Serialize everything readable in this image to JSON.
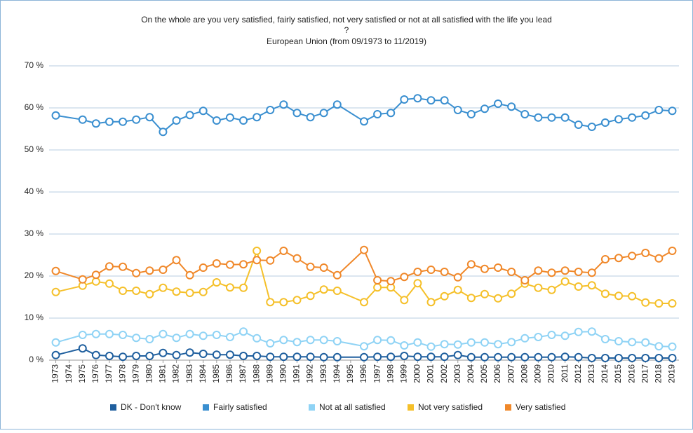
{
  "chart_data": {
    "type": "line",
    "title": [
      "On the whole are you very satisfied, fairly satisfied, not very satisfied or not at all satisfied with the life you lead",
      "?"
    ],
    "subtitle": "European Union (from 09/1973 to 11/2019)",
    "x": [
      1973,
      1975,
      1976,
      1977,
      1978,
      1979,
      1980,
      1981,
      1982,
      1983,
      1984,
      1985,
      1986,
      1987,
      1988,
      1989,
      1990,
      1991,
      1992,
      1993,
      1994,
      1996,
      1997,
      1998,
      1999,
      2000,
      2001,
      2002,
      2003,
      2004,
      2005,
      2006,
      2007,
      2008,
      2009,
      2010,
      2011,
      2012,
      2013,
      2014,
      2015,
      2016,
      2017,
      2018,
      2019
    ],
    "xlim": [
      1972.5,
      2019.5
    ],
    "xticks": [
      1973,
      1974,
      1975,
      1976,
      1977,
      1978,
      1979,
      1980,
      1981,
      1982,
      1983,
      1984,
      1985,
      1986,
      1987,
      1988,
      1989,
      1990,
      1991,
      1992,
      1993,
      1994,
      1995,
      1996,
      1997,
      1998,
      1999,
      2000,
      2001,
      2002,
      2003,
      2004,
      2005,
      2006,
      2007,
      2008,
      2009,
      2010,
      2011,
      2012,
      2013,
      2014,
      2015,
      2016,
      2017,
      2018,
      2019
    ],
    "ylim": [
      0,
      70
    ],
    "yticks": [
      {
        "value": 0,
        "label": "0 %"
      },
      {
        "value": 10,
        "label": "10 %"
      },
      {
        "value": 20,
        "label": "20 %"
      },
      {
        "value": 30,
        "label": "30 %"
      },
      {
        "value": 40,
        "label": "40 %"
      },
      {
        "value": 50,
        "label": "50 %"
      },
      {
        "value": 60,
        "label": "60 %"
      },
      {
        "value": 70,
        "label": "70 %"
      }
    ],
    "grid": true,
    "legend": "bottom",
    "series": [
      {
        "name": "DK - Don't know",
        "color": "#1f5f9e",
        "values": [
          1.2,
          2.8,
          1.2,
          1.0,
          0.8,
          1.0,
          1.0,
          1.7,
          1.2,
          1.8,
          1.5,
          1.3,
          1.3,
          1.0,
          1.0,
          0.8,
          0.8,
          0.8,
          0.8,
          0.7,
          0.7,
          0.7,
          0.8,
          0.8,
          1.0,
          0.8,
          0.8,
          0.8,
          1.2,
          0.7,
          0.7,
          0.7,
          0.7,
          0.7,
          0.7,
          0.7,
          0.8,
          0.7,
          0.5,
          0.5,
          0.5,
          0.5,
          0.5,
          0.5,
          0.5
        ]
      },
      {
        "name": "Fairly satisfied",
        "color": "#3a8fd0",
        "values": [
          58.2,
          57.2,
          56.3,
          56.7,
          56.7,
          57.2,
          57.8,
          54.3,
          57.0,
          58.3,
          59.3,
          57.0,
          57.7,
          57.0,
          57.8,
          59.5,
          60.8,
          58.8,
          57.8,
          58.8,
          60.8,
          56.8,
          58.5,
          58.8,
          62.0,
          62.3,
          61.8,
          61.8,
          59.5,
          58.5,
          59.8,
          61.0,
          60.3,
          58.5,
          57.7,
          57.7,
          57.7,
          56.0,
          55.5,
          56.5,
          57.3,
          57.7,
          58.2,
          59.5,
          59.3
        ]
      },
      {
        "name": "Not at all satisfied",
        "color": "#8fd3f5",
        "values": [
          4.2,
          6.0,
          6.2,
          6.2,
          6.0,
          5.3,
          5.0,
          6.2,
          5.3,
          6.2,
          5.8,
          6.0,
          5.5,
          6.8,
          5.2,
          4.0,
          4.8,
          4.3,
          4.8,
          4.8,
          4.5,
          3.3,
          4.8,
          4.7,
          3.5,
          4.2,
          3.2,
          3.8,
          3.7,
          4.2,
          4.2,
          3.8,
          4.3,
          5.2,
          5.5,
          6.0,
          5.8,
          6.7,
          6.8,
          5.0,
          4.5,
          4.3,
          4.2,
          3.3,
          3.2
        ]
      },
      {
        "name": "Not very satisfied",
        "color": "#f5c02a",
        "values": [
          16.2,
          17.7,
          18.7,
          18.2,
          16.5,
          16.5,
          15.7,
          17.2,
          16.3,
          16.0,
          16.2,
          18.5,
          17.3,
          17.2,
          26.0,
          13.8,
          13.8,
          14.3,
          15.3,
          16.8,
          16.5,
          13.8,
          17.3,
          17.3,
          14.3,
          18.3,
          13.8,
          15.2,
          16.7,
          14.8,
          15.7,
          14.7,
          15.8,
          18.2,
          17.2,
          16.7,
          18.7,
          17.5,
          17.8,
          15.8,
          15.3,
          15.2,
          13.7,
          13.5,
          13.5
        ]
      },
      {
        "name": "Very satisfied",
        "color": "#f0882a",
        "values": [
          21.2,
          19.2,
          20.3,
          22.3,
          22.2,
          20.7,
          21.3,
          21.5,
          23.8,
          20.2,
          22.0,
          23.0,
          22.7,
          22.8,
          23.8,
          23.7,
          26.0,
          24.2,
          22.2,
          22.0,
          20.2,
          26.2,
          19.0,
          18.8,
          19.8,
          21.0,
          21.5,
          21.0,
          19.7,
          22.8,
          21.7,
          22.0,
          21.0,
          19.0,
          21.3,
          20.8,
          21.3,
          21.0,
          20.8,
          24.0,
          24.3,
          24.8,
          25.5,
          24.2,
          26.0
        ]
      }
    ]
  }
}
